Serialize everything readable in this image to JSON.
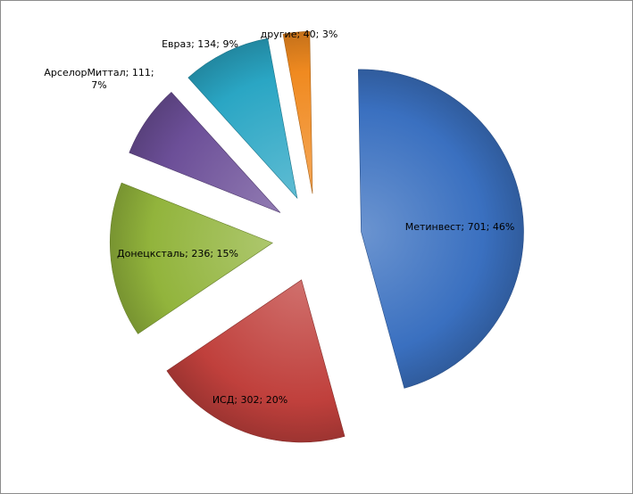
{
  "chart_data": {
    "type": "pie",
    "title": "",
    "exploded": true,
    "slices": [
      {
        "name": "Метинвест",
        "value": 701,
        "percent": "46%",
        "color": "#3a70c0",
        "label_lines": [
          "Метинвест; 701; 46%"
        ]
      },
      {
        "name": "ИСД",
        "value": 302,
        "percent": "20%",
        "color": "#c0403c",
        "label_lines": [
          "ИСД; 302; 20%"
        ]
      },
      {
        "name": "Донецксталь",
        "value": 236,
        "percent": "15%",
        "color": "#92b43c",
        "label_lines": [
          "Донецксталь; 236; 15%"
        ]
      },
      {
        "name": "АрселорМиттал",
        "value": 111,
        "percent": "7%",
        "color": "#6c4f98",
        "label_lines": [
          "АрселорМиттал; 111;",
          "7%"
        ]
      },
      {
        "name": "Евраз",
        "value": 134,
        "percent": "9%",
        "color": "#2aa6c4",
        "label_lines": [
          "Евраз; 134; 9%"
        ]
      },
      {
        "name": "другие",
        "value": 40,
        "percent": "3%",
        "color": "#f08a20",
        "label_lines": [
          "другие; 40; 3%"
        ]
      }
    ]
  }
}
